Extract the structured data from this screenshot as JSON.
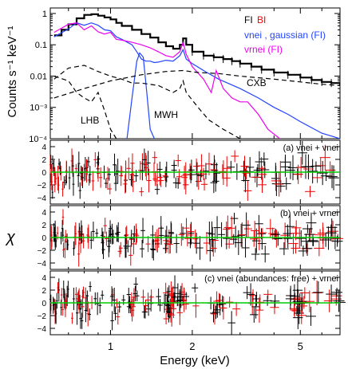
{
  "chart_data": [
    {
      "type": "line",
      "panel": "spectrum",
      "ylabel": "Counts s⁻¹ keV⁻¹",
      "yscale": "log",
      "xscale": "log",
      "xlim": [
        0.6,
        7.0
      ],
      "ylim": [
        0.0001,
        1.5
      ],
      "y_ticks": [
        {
          "value": 1,
          "label": "1"
        },
        {
          "value": 0.1,
          "label": "0.1"
        },
        {
          "value": 0.01,
          "label": "0.01"
        },
        {
          "value": 0.001,
          "label": "10⁻³"
        },
        {
          "value": 0.0001,
          "label": "10⁻⁴"
        }
      ],
      "legend": [
        {
          "text": "FI",
          "color": "#000000"
        },
        {
          "text": "BI",
          "color": "#ff0000"
        },
        {
          "text": "vnei , gaussian (FI)",
          "color": "#2244ff"
        },
        {
          "text": "vrnei (FI)",
          "color": "#ee00ee"
        }
      ],
      "annotations": [
        {
          "text": "CXB",
          "x": 3.3,
          "y": 0.0035
        },
        {
          "text": "LHB",
          "x": 0.85,
          "y": 0.0003
        },
        {
          "text": "MWH",
          "x": 1.5,
          "y": 0.0004
        }
      ],
      "series": [
        {
          "style": "data",
          "color": "#000000",
          "x": [
            0.62,
            0.66,
            0.7,
            0.75,
            0.8,
            0.85,
            0.9,
            0.95,
            1.0,
            1.05,
            1.1,
            1.2,
            1.3,
            1.4,
            1.5,
            1.6,
            1.7,
            1.8,
            1.85,
            1.9,
            2.0,
            2.2,
            2.4,
            2.6,
            2.8,
            3.0,
            3.3,
            3.6,
            4.0,
            4.5,
            5.0,
            5.5,
            6.0,
            6.5,
            7.0
          ],
          "y": [
            0.2,
            0.3,
            0.45,
            0.7,
            0.9,
            0.95,
            0.85,
            0.75,
            0.65,
            0.5,
            0.4,
            0.3,
            0.22,
            0.17,
            0.12,
            0.09,
            0.075,
            0.1,
            0.16,
            0.1,
            0.06,
            0.045,
            0.04,
            0.035,
            0.03,
            0.025,
            0.02,
            0.016,
            0.013,
            0.011,
            0.009,
            0.0075,
            0.0065,
            0.006,
            0.005
          ]
        },
        {
          "style": "line",
          "color": "#2244ff",
          "x": [
            0.62,
            0.7,
            0.75,
            0.8,
            0.85,
            0.9,
            0.95,
            1.0,
            1.05,
            1.1,
            1.2,
            1.25,
            1.3,
            1.35,
            1.4,
            1.45,
            1.5,
            1.6,
            1.7,
            1.8,
            1.85,
            1.9,
            2.0,
            2.2,
            2.5,
            3.0,
            3.5,
            4.0,
            4.5,
            5.0,
            6.0,
            7.0
          ],
          "y": [
            0.18,
            0.32,
            0.5,
            0.42,
            0.5,
            0.42,
            0.3,
            0.28,
            0.18,
            0.15,
            0.1,
            0.06,
            0.035,
            0.03,
            0.03,
            0.027,
            0.028,
            0.032,
            0.03,
            0.045,
            0.07,
            0.035,
            0.025,
            0.015,
            0.008,
            0.004,
            0.002,
            0.001,
            0.0006,
            0.00035,
            0.00015,
            0.0001
          ]
        },
        {
          "style": "line",
          "color": "#ee00ee",
          "x": [
            0.62,
            0.7,
            0.75,
            0.8,
            0.85,
            0.9,
            0.95,
            1.0,
            1.05,
            1.1,
            1.2,
            1.3,
            1.4,
            1.5,
            1.6,
            1.7,
            1.8,
            1.85,
            1.9,
            2.0,
            2.2,
            2.35,
            2.45,
            2.6,
            2.8,
            3.0,
            3.2,
            3.5,
            3.8,
            4.2
          ],
          "y": [
            0.25,
            0.45,
            0.5,
            0.3,
            0.4,
            0.26,
            0.22,
            0.25,
            0.15,
            0.14,
            0.12,
            0.1,
            0.08,
            0.06,
            0.045,
            0.04,
            0.06,
            0.12,
            0.05,
            0.02,
            0.008,
            0.003,
            0.015,
            0.004,
            0.002,
            0.0015,
            0.0015,
            0.0006,
            0.0002,
            0.0001
          ]
        },
        {
          "style": "line",
          "color": "#2244ff",
          "x": [
            1.15,
            1.2,
            1.25,
            1.28,
            1.32,
            1.36,
            1.4,
            1.45
          ],
          "y": [
            0.0001,
            0.002,
            0.03,
            0.055,
            0.04,
            0.003,
            0.0002,
            0.0001
          ]
        },
        {
          "style": "dashed",
          "color": "#000000",
          "x": [
            0.62,
            0.8,
            1.0,
            1.3,
            1.6,
            1.85,
            2.1,
            2.5,
            3.0,
            4.0,
            5.0,
            6.0,
            7.0
          ],
          "y": [
            0.002,
            0.004,
            0.007,
            0.011,
            0.014,
            0.015,
            0.013,
            0.012,
            0.01,
            0.008,
            0.0065,
            0.0055,
            0.005
          ]
        },
        {
          "style": "dashed",
          "color": "#000000",
          "x": [
            0.62,
            0.7,
            0.8,
            0.9,
            1.0,
            1.1,
            1.2,
            1.3,
            1.5,
            1.7,
            1.8,
            1.85,
            1.9,
            2.1,
            2.3,
            2.6,
            3.0,
            3.4
          ],
          "y": [
            0.008,
            0.018,
            0.022,
            0.014,
            0.01,
            0.008,
            0.006,
            0.006,
            0.005,
            0.003,
            0.004,
            0.007,
            0.003,
            0.001,
            0.0004,
            0.0002,
            0.0001,
            8e-05
          ]
        },
        {
          "style": "dashed",
          "color": "#000000",
          "x": [
            0.62,
            0.7,
            0.75,
            0.8,
            0.85,
            0.9,
            0.95,
            1.0,
            1.05,
            1.1
          ],
          "y": [
            0.01,
            0.007,
            0.003,
            0.002,
            0.0015,
            0.003,
            0.0008,
            0.0002,
            0.0001,
            5e-05
          ]
        }
      ]
    },
    {
      "type": "scatter",
      "panel": "residuals",
      "label": "(a) vnei + vnei",
      "ylabel": "χ",
      "ylim": [
        -5,
        5
      ],
      "y_ticks": [
        -4,
        -2,
        0,
        2,
        4
      ],
      "reference_line": {
        "y": 0,
        "color": "#00cc00"
      }
    },
    {
      "type": "scatter",
      "panel": "residuals",
      "label": "(b) vnei + vrnei",
      "ylim": [
        -5,
        5
      ],
      "y_ticks": [
        -4,
        -2,
        0,
        2,
        4
      ],
      "reference_line": {
        "y": 0,
        "color": "#00cc00"
      }
    },
    {
      "type": "scatter",
      "panel": "residuals",
      "label": "(c) vnei (abundances: free) + vrnei",
      "ylim": [
        -5,
        5
      ],
      "y_ticks": [
        -4,
        -2,
        0,
        2,
        4
      ],
      "reference_line": {
        "y": 0,
        "color": "#00cc00"
      },
      "xlabel": "Energy (keV)",
      "x_ticks": [
        {
          "value": 1,
          "label": "1"
        },
        {
          "value": 2,
          "label": "2"
        },
        {
          "value": 5,
          "label": "5"
        }
      ]
    }
  ]
}
